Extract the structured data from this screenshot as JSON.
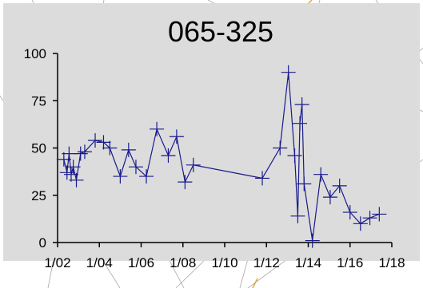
{
  "colors": {
    "page_background": "#ffffff",
    "chart_area": "#dcdcdc",
    "series": "#1a1a8c",
    "axis": "#000000",
    "backdrop_lines": "#a8a8a8",
    "backdrop_accent": "#e8a23a"
  },
  "chart_data": {
    "type": "line",
    "title": "065-325",
    "xlabel": "",
    "ylabel": "",
    "x_tick_labels": [
      "1/02",
      "1/04",
      "1/06",
      "1/08",
      "1/10",
      "1/12",
      "1/14",
      "1/16",
      "1/18"
    ],
    "x_tick_years": [
      2002,
      2004,
      2006,
      2008,
      2010,
      2012,
      2014,
      2016,
      2018
    ],
    "y_tick_labels": [
      "0",
      "25",
      "50",
      "75",
      "100"
    ],
    "y_ticks": [
      0,
      25,
      50,
      75,
      100
    ],
    "ylim": [
      0,
      100
    ],
    "xlim_years": [
      2002,
      2018
    ],
    "grid": false,
    "legend": "none",
    "marker": "plus",
    "series": [
      {
        "x_years": [
          2002.3,
          2002.45,
          2002.55,
          2002.65,
          2002.75,
          2002.9,
          2003.1,
          2003.3,
          2003.8,
          2004.2,
          2004.5,
          2005.0,
          2005.4,
          2005.75,
          2006.25,
          2006.75,
          2007.3,
          2007.7,
          2008.1,
          2008.5,
          2011.8,
          2012.65,
          2013.05,
          2013.35,
          2013.5,
          2013.6,
          2013.7,
          2013.8,
          2014.2,
          2014.6,
          2015.05,
          2015.5,
          2016.0,
          2016.5,
          2016.95,
          2017.4
        ],
        "y": [
          44,
          37,
          47,
          36,
          40,
          33,
          47,
          48,
          54,
          53,
          50,
          35,
          49,
          40,
          35,
          60,
          46,
          56,
          32,
          41,
          34,
          50,
          90,
          46,
          14,
          63,
          73,
          31,
          1,
          36,
          24,
          30,
          16,
          10,
          13,
          15
        ]
      }
    ]
  }
}
